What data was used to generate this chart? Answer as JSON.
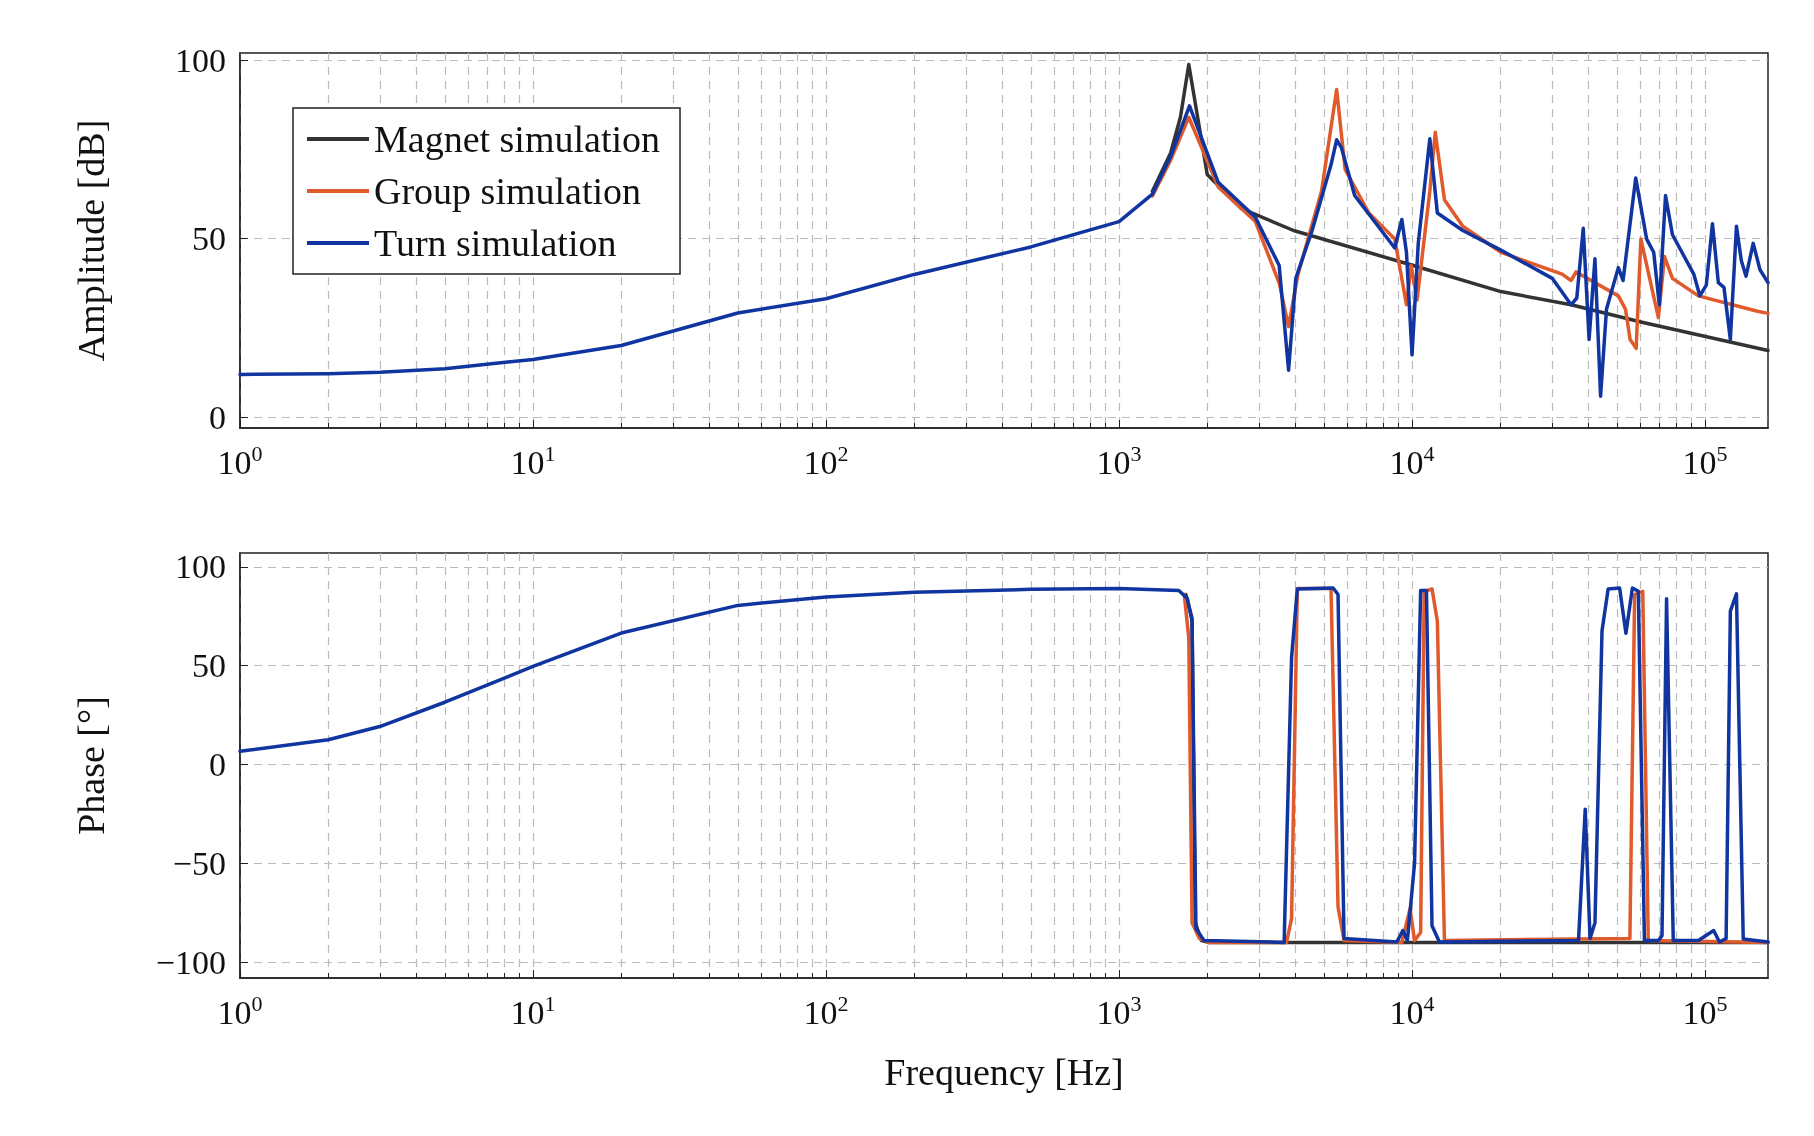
{
  "chart_data": [
    {
      "type": "line",
      "ylabel": "Amplitude [dB]",
      "xlim": [
        1,
        164000
      ],
      "ylim": [
        -3,
        102
      ],
      "log": "x",
      "grid": true,
      "legend": "top left",
      "marker": "none",
      "line_style": "solid",
      "xticks": [
        {
          "value": 1,
          "label": "10$^{0}$"
        },
        {
          "value": 10,
          "label": "10$^{1}$"
        },
        {
          "value": 100,
          "label": "10$^{2}$"
        },
        {
          "value": 1000,
          "label": "10$^{3}$"
        },
        {
          "value": 10000,
          "label": "10$^{4}$"
        },
        {
          "value": 100000,
          "label": "10$^{5}$"
        }
      ],
      "yticks": [
        0,
        50,
        100
      ],
      "series": [
        {
          "name": "Magnet simulation",
          "color": "#333333",
          "x": [
            1300,
            1500,
            1620,
            1730,
            2000,
            2620,
            3940,
            10100,
            20100,
            34900,
            60900,
            164000
          ],
          "values": [
            63.3,
            74,
            84,
            98.8,
            68,
            58.4,
            52.3,
            42.5,
            35.2,
            31.5,
            26.6,
            18.7
          ]
        },
        {
          "name": "Group simulation",
          "color": "#e05a2b",
          "x": [
            1300,
            1500,
            1730,
            2180,
            2920,
            3520,
            3790,
            4080,
            4910,
            5530,
            5910,
            7120,
            8730,
            9570,
            9930,
            10400,
            11500,
            12000,
            12900,
            14900,
            20100,
            32500,
            34900,
            36300,
            50600,
            53500,
            55500,
            58200,
            60400,
            69300,
            72700,
            77400,
            94900,
            151000,
            164000
          ],
          "values": [
            62,
            72,
            84,
            64.5,
            54.8,
            37.6,
            25.4,
            40,
            63.3,
            91.8,
            69.4,
            57.2,
            49.9,
            31.5,
            42.5,
            32.8,
            63.3,
            79.8,
            60.9,
            53.5,
            46.2,
            40.1,
            38.3,
            40.7,
            34,
            30.3,
            21.8,
            19.3,
            49.9,
            27.9,
            45,
            38.9,
            34,
            29.7,
            29.1
          ]
        },
        {
          "name": "Turn simulation",
          "color": "#1035a0",
          "x": [
            1,
            2,
            3,
            5,
            10,
            20,
            50,
            100,
            200,
            500,
            1000,
            1300,
            1500,
            1740,
            2180,
            2920,
            3520,
            3790,
            4010,
            4560,
            5290,
            5530,
            5740,
            6370,
            8730,
            9230,
            9570,
            10000,
            10500,
            11500,
            12200,
            14900,
            20100,
            30100,
            34900,
            36500,
            38400,
            40200,
            42100,
            44000,
            46100,
            50600,
            52500,
            58000,
            63200,
            66800,
            69800,
            73300,
            77400,
            91500,
            96000,
            101000,
            106000,
            111000,
            116000,
            122000,
            128000,
            133000,
            138000,
            146000,
            154000,
            164000
          ],
          "values": [
            12,
            12.2,
            12.6,
            13.6,
            16.2,
            20.1,
            29.2,
            33.2,
            40,
            47.7,
            54.8,
            62.5,
            73,
            87.2,
            65.8,
            56,
            42.5,
            13.2,
            38.9,
            52.3,
            70.7,
            77.7,
            75.5,
            62.1,
            47.4,
            55.4,
            46.2,
            17.5,
            48.7,
            78,
            57.2,
            52.3,
            46.8,
            38.9,
            31.5,
            33.4,
            52.9,
            21.8,
            44.4,
            5.9,
            30.3,
            41.9,
            38.3,
            67,
            49.9,
            46.2,
            31.5,
            62.1,
            51.1,
            40.1,
            34,
            37,
            54.2,
            37.7,
            36.4,
            21.8,
            53.5,
            43.8,
            39.5,
            48.7,
            41.3,
            37.7
          ]
        }
      ]
    },
    {
      "type": "line",
      "ylabel": "Phase [°]",
      "xlabel": "Frequency [Hz]",
      "xlim": [
        1,
        164000
      ],
      "ylim": [
        -108,
        107
      ],
      "log": "x",
      "grid": true,
      "marker": "none",
      "line_style": "solid",
      "xticks": [
        {
          "value": 1,
          "label": "10$^{0}$"
        },
        {
          "value": 10,
          "label": "10$^{1}$"
        },
        {
          "value": 100,
          "label": "10$^{2}$"
        },
        {
          "value": 1000,
          "label": "10$^{3}$"
        },
        {
          "value": 10000,
          "label": "10$^{4}$"
        },
        {
          "value": 100000,
          "label": "10$^{5}$"
        }
      ],
      "yticks": [
        {
          "value": -100,
          "label": "−100"
        },
        {
          "value": -50,
          "label": "−50"
        },
        0,
        50,
        100
      ],
      "series": [
        {
          "color": "#333333",
          "x": [
            1690,
            1775,
            1820,
            1910,
            2020,
            164000
          ],
          "values": [
            86,
            74,
            -80,
            -89,
            -90,
            -90
          ]
        },
        {
          "color": "#e05a2b",
          "x": [
            1670,
            1730,
            1775,
            1880,
            2020,
            3730,
            3880,
            4060,
            5290,
            5590,
            5860,
            9230,
            9840,
            10200,
            10700,
            11000,
            11700,
            12200,
            12900,
            55400,
            57500,
            61300,
            64000,
            164000
          ],
          "values": [
            86,
            64,
            -80,
            -88,
            -90,
            -90,
            -78,
            89,
            89,
            -72,
            -89,
            -90,
            -73,
            -89,
            -85,
            87.6,
            88.8,
            72.6,
            -89,
            -88,
            86,
            87.6,
            -89,
            -90
          ]
        },
        {
          "color": "#1035a0",
          "x": [
            1,
            2,
            3,
            5,
            10,
            20,
            50,
            100,
            200,
            500,
            1000,
            1600,
            1710,
            1775,
            1830,
            1950,
            3660,
            3880,
            4060,
            5380,
            5590,
            5860,
            8875,
            9300,
            9640,
            10200,
            10700,
            11200,
            11700,
            12400,
            37000,
            39000,
            40500,
            42100,
            44500,
            46700,
            51100,
            53700,
            56500,
            59200,
            62100,
            69300,
            71300,
            73900,
            77900,
            94900,
            107000,
            112000,
            118000,
            122000,
            128000,
            135000,
            164000
          ],
          "values": [
            6.7,
            12.5,
            19.2,
            31.5,
            49.6,
            66.5,
            80.5,
            84.8,
            87.2,
            88.6,
            89,
            88,
            84,
            72.6,
            -83,
            -89,
            -90,
            54,
            88.8,
            89.3,
            86,
            -88,
            -89.8,
            -84,
            -89,
            -50,
            88,
            88,
            -81.6,
            -89.8,
            -89,
            -22.6,
            -88,
            -80,
            67.7,
            88.8,
            89.3,
            66.4,
            89.3,
            87.6,
            -89,
            -89,
            -86.6,
            83.8,
            -89,
            -89,
            -84,
            -89.8,
            -88,
            77.6,
            86.3,
            -88.3,
            -89.8
          ]
        }
      ]
    }
  ]
}
